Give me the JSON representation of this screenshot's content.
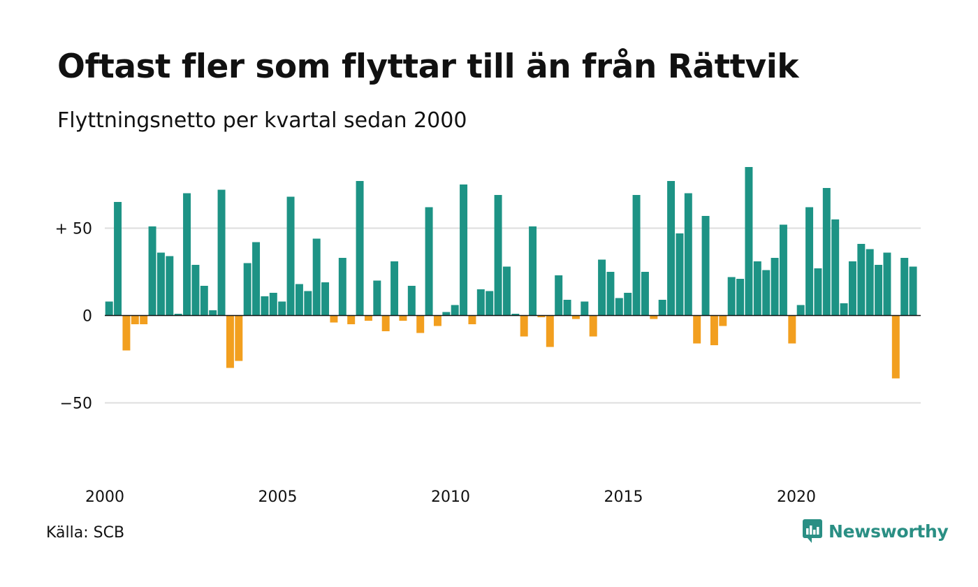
{
  "title": "Oftast fler som flyttar till än från Rättvik",
  "subtitle": "Flyttningsnetto per kvartal sedan 2000",
  "source": "Källa: SCB",
  "brand": {
    "name": "Newsworthy",
    "icon": "newsworthy-logo-icon",
    "color": "#2a8f84"
  },
  "colors": {
    "positive": "#1d9385",
    "negative": "#f29f1f",
    "gridline": "#dedede",
    "zeroline": "#111111"
  },
  "chart_data": {
    "type": "bar",
    "title": "Oftast fler som flyttar till än från Rättvik",
    "subtitle": "Flyttningsnetto per kvartal sedan 2000",
    "xlabel": "",
    "ylabel": "",
    "x_start": 2000,
    "x_end": 2024,
    "periods_per_year": 4,
    "xticks": [
      {
        "value": 2000,
        "label": "2000"
      },
      {
        "value": 2005,
        "label": "2005"
      },
      {
        "value": 2010,
        "label": "2010"
      },
      {
        "value": 2015,
        "label": "2015"
      },
      {
        "value": 2020,
        "label": "2020"
      }
    ],
    "yticks": [
      {
        "value": 50,
        "label": "+ 50"
      },
      {
        "value": 0,
        "label": "0"
      },
      {
        "value": -50,
        "label": "−50"
      }
    ],
    "ylim": [
      -90,
      90
    ],
    "grid": true,
    "legend": "none",
    "values": [
      8,
      65,
      -20,
      -5,
      -5,
      51,
      36,
      34,
      1,
      70,
      29,
      17,
      3,
      72,
      -30,
      -26,
      30,
      42,
      11,
      13,
      8,
      68,
      18,
      14,
      44,
      19,
      -4,
      33,
      -5,
      77,
      -3,
      20,
      -9,
      31,
      -3,
      17,
      -10,
      62,
      -6,
      2,
      6,
      75,
      -5,
      15,
      14,
      69,
      28,
      1,
      -12,
      51,
      -1,
      -18,
      23,
      9,
      -2,
      8,
      -12,
      32,
      25,
      10,
      13,
      69,
      25,
      -2,
      9,
      77,
      47,
      70,
      -16,
      57,
      -17,
      -6,
      22,
      21,
      85,
      31,
      26,
      33,
      52,
      -16,
      6,
      62,
      27,
      73,
      55,
      7,
      31,
      41,
      38,
      29,
      36,
      -36,
      33,
      28
    ]
  }
}
